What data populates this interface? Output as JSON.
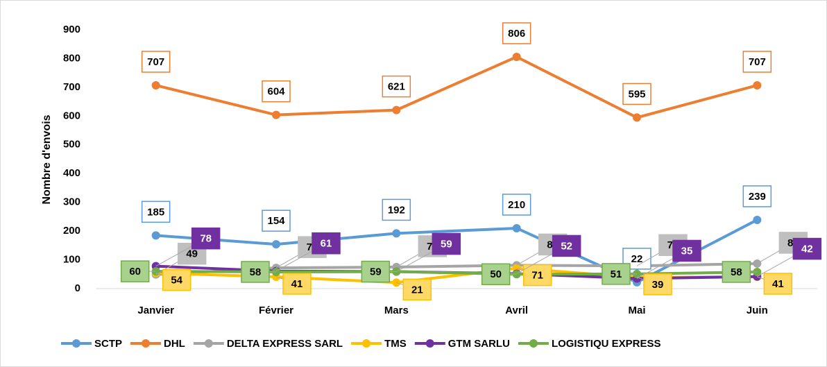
{
  "chart_data": {
    "type": "line",
    "y_label": "Nombre d'envois",
    "categories": [
      "Janvier",
      "Février",
      "Mars",
      "Avril",
      "Mai",
      "Juin"
    ],
    "series": [
      {
        "name": "SCTP",
        "color": "#5b9bd5",
        "values": [
          185,
          154,
          192,
          210,
          22,
          239
        ]
      },
      {
        "name": "DHL",
        "color": "#ed7d31",
        "values": [
          707,
          604,
          621,
          806,
          595,
          707
        ]
      },
      {
        "name": "DELTA EXPRESS SARL",
        "color": "#a5a5a5",
        "values": [
          49,
          72,
          75,
          81,
          79,
          87
        ]
      },
      {
        "name": "TMS",
        "color": "#ffc000",
        "values": [
          54,
          41,
          21,
          71,
          39,
          41
        ]
      },
      {
        "name": "GTM SARLU",
        "color": "#7030a0",
        "values": [
          78,
          61,
          59,
          52,
          35,
          42
        ]
      },
      {
        "name": "LOGISTIQU EXPRESS",
        "color": "#70ad47",
        "values": [
          60,
          58,
          59,
          50,
          51,
          58
        ]
      }
    ],
    "ylim": [
      0,
      900
    ],
    "yticks": [
      0,
      100,
      200,
      300,
      400,
      500,
      600,
      700,
      800,
      900
    ],
    "grid": false,
    "legend": "bottom"
  }
}
